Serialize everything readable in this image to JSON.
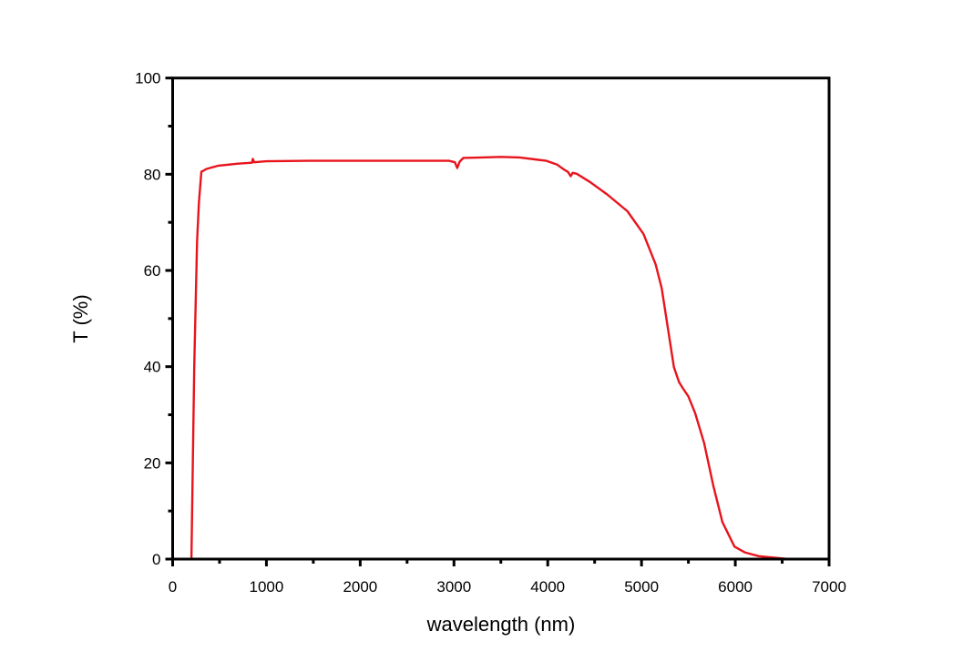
{
  "chart_data": {
    "type": "line",
    "title": "",
    "xlabel": "wavelength (nm)",
    "ylabel": "T (%)",
    "xlim": [
      0,
      7000
    ],
    "ylim": [
      0,
      100
    ],
    "xticks": [
      "0",
      "1000",
      "2000",
      "3000",
      "4000",
      "5000",
      "6000",
      "7000"
    ],
    "yticks": [
      "0",
      "20",
      "40",
      "60",
      "80",
      "100"
    ],
    "grid": false,
    "series": [
      {
        "color": "#e8141c",
        "x": [
          200,
          230,
          260,
          280,
          306,
          361,
          490,
          700,
          846,
          855,
          870,
          1000,
          1461,
          2000,
          2500,
          2950,
          3010,
          3035,
          3060,
          3100,
          3300,
          3500,
          3700,
          3900,
          3985,
          4100,
          4180,
          4215,
          4245,
          4265,
          4309,
          4450,
          4633,
          4850,
          5021,
          5150,
          5215,
          5280,
          5345,
          5400,
          5442,
          5500,
          5571,
          5668,
          5765,
          5862,
          5992,
          6100,
          6251,
          6570,
          7000
        ],
        "y": [
          0,
          40,
          66,
          74,
          80.5,
          81.1,
          81.8,
          82.2,
          82.4,
          83.2,
          82.5,
          82.7,
          82.8,
          82.8,
          82.8,
          82.8,
          82.5,
          81.3,
          82.6,
          83.4,
          83.5,
          83.6,
          83.5,
          83.0,
          82.8,
          82.0,
          80.9,
          80.5,
          79.6,
          80.3,
          80.1,
          78.4,
          75.8,
          72.3,
          67.6,
          61.3,
          56.3,
          48.1,
          39.9,
          36.8,
          35.5,
          33.8,
          30.4,
          24.1,
          15.3,
          7.7,
          2.6,
          1.4,
          0.6,
          0,
          0
        ]
      }
    ]
  }
}
